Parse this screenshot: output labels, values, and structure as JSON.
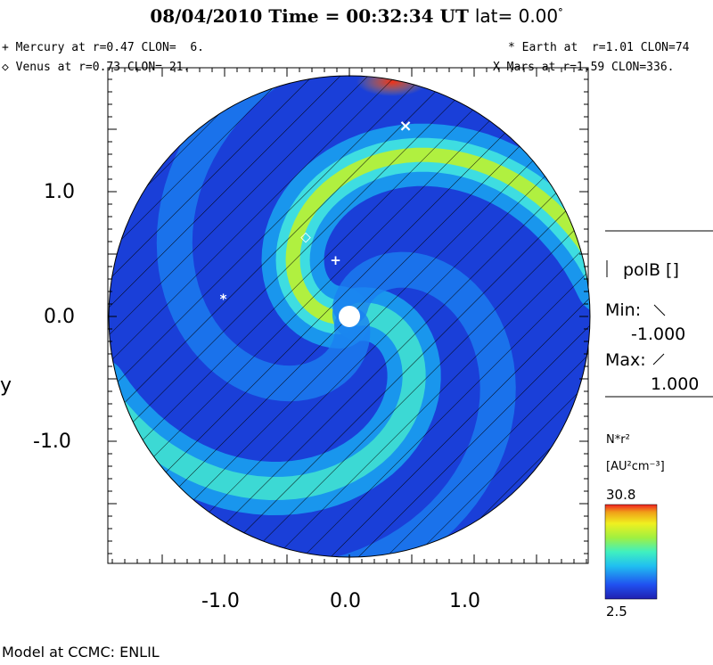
{
  "header": {
    "date": "08/04/2010",
    "time_label": "Time = 00:32:34 UT",
    "lat_label": "lat= 0.00",
    "lat_degree": "°"
  },
  "planets": {
    "mercury": "+ Mercury at r=0.47 CLON=  6.",
    "venus": "◇ Venus at r=0.73 CLON= 21.",
    "earth": "* Earth at  r=1.01 CLON=74",
    "mars": "X Mars at r=1.59 CLON=336."
  },
  "colors": {
    "background_low": "#1a3fd8",
    "spiral_high": "#f0f018",
    "peak": "#f03018",
    "hatch": "#000000"
  },
  "chart_data": {
    "type": "heatmap",
    "xlabel": "",
    "ylabel": "y",
    "x_ticks": [
      "-1.0",
      "0.0",
      "1.0"
    ],
    "y_ticks": [
      "1.0",
      "0.0",
      "-1.0"
    ],
    "xlim": [
      -2.0,
      2.0
    ],
    "ylim": [
      -2.0,
      2.0
    ],
    "quantity": "N*r²",
    "unit": "[AU²cm⁻³]",
    "colorbar_min": 2.5,
    "colorbar_max": 30.8,
    "colorbar_min_label": "2.5",
    "colorbar_max_label": "30.8",
    "overlay": {
      "name": "polB []",
      "min_label": "Min:",
      "min_value": "-1.000",
      "max_label": "Max:",
      "max_value": "1.000"
    },
    "planet_positions": [
      {
        "name": "Mercury",
        "x": -0.11,
        "y": 0.45
      },
      {
        "name": "Venus",
        "x": -0.35,
        "y": 0.64
      },
      {
        "name": "Earth",
        "x": -1.01,
        "y": 0.14
      },
      {
        "name": "Mars",
        "x": 0.45,
        "y": 1.52
      }
    ]
  },
  "footer": "Model at CCMC: ENLIL"
}
